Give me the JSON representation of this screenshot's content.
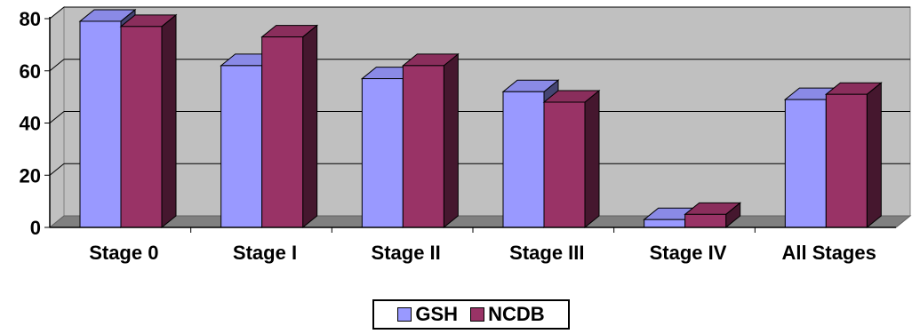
{
  "chart_data": {
    "type": "bar",
    "categories": [
      "Stage 0",
      "Stage I",
      "Stage II",
      "Stage III",
      "Stage IV",
      "All Stages"
    ],
    "series": [
      {
        "name": "GSH",
        "values": [
          79,
          62,
          57,
          52,
          3,
          49
        ],
        "color": "#9999ff"
      },
      {
        "name": "NCDB",
        "values": [
          77,
          73,
          62,
          48,
          5,
          51
        ],
        "color": "#993366"
      }
    ],
    "y_ticks": [
      0,
      20,
      40,
      60,
      80
    ],
    "ylim": [
      0,
      80
    ],
    "grid": true,
    "style": "3d-clustered-column",
    "legend_position": "bottom-center"
  }
}
